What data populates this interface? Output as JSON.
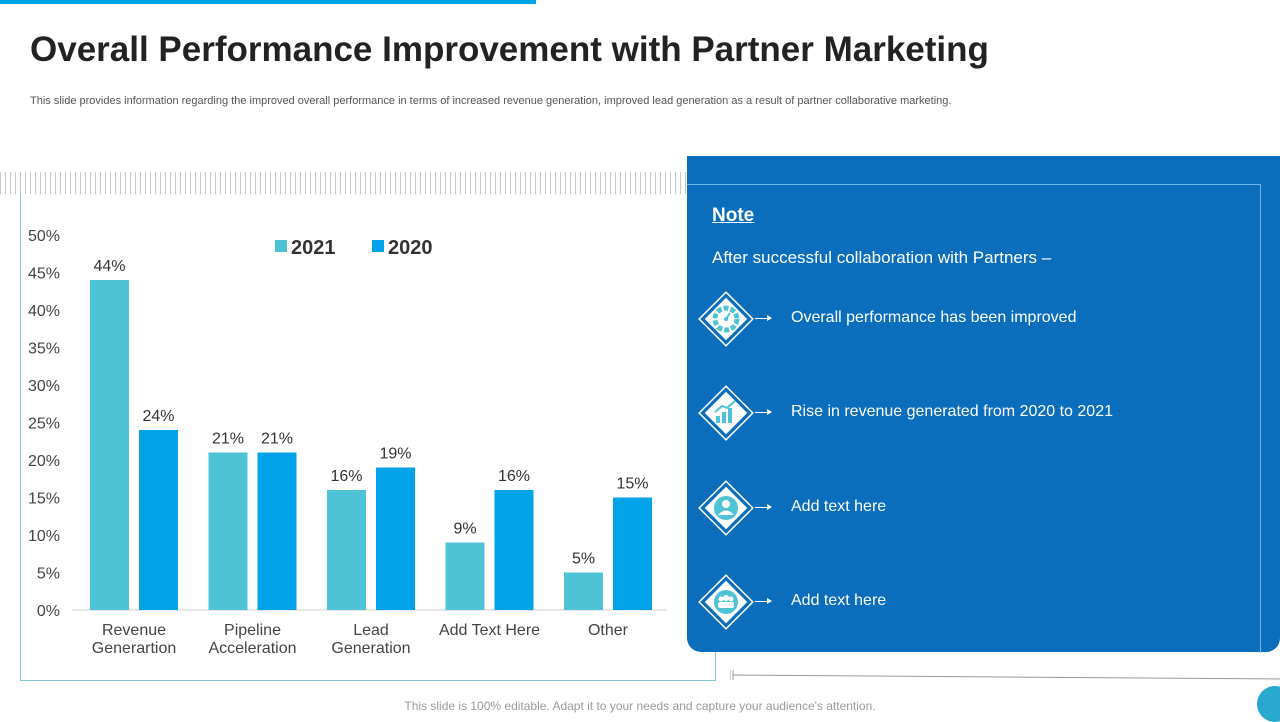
{
  "header": {
    "title": "Overall Performance Improvement with Partner Marketing",
    "subtitle": "This slide provides information regarding the improved overall performance in terms of increased revenue generation, improved lead generation as a result of partner collaborative marketing."
  },
  "chart_data": {
    "type": "bar",
    "categories": [
      "Revenue\nGenerartion",
      "Pipeline\nAcceleration",
      "Lead\nGeneration",
      "Add Text Here",
      "Other"
    ],
    "series": [
      {
        "name": "2021",
        "values": [
          44,
          21,
          16,
          9,
          5
        ],
        "color": "#4fc3d6"
      },
      {
        "name": "2020",
        "values": [
          24,
          21,
          19,
          16,
          15
        ],
        "color": "#00a3e8"
      }
    ],
    "yticks": [
      "0%",
      "5%",
      "10%",
      "15%",
      "20%",
      "25%",
      "30%",
      "35%",
      "40%",
      "45%",
      "50%"
    ],
    "ylim": [
      0,
      50
    ],
    "value_suffix": "%",
    "legend_position": "top-center",
    "title": "",
    "xlabel": "",
    "ylabel": ""
  },
  "note": {
    "heading": "Note",
    "intro": "After successful collaboration with Partners –",
    "items": [
      {
        "icon": "speedometer-icon",
        "text": "Overall performance has been improved"
      },
      {
        "icon": "growth-chart-icon",
        "text": "Rise in revenue generated from 2020 to 2021"
      },
      {
        "icon": "user-icon",
        "text": "Add text here"
      },
      {
        "icon": "team-icon",
        "text": "Add text here"
      }
    ]
  },
  "footer": {
    "text": "This slide is 100% editable. Adapt it to your needs and capture your audience's attention."
  },
  "colors": {
    "accent": "#00a3e8",
    "panel": "#0a6ebd",
    "teal": "#4fc3d6"
  }
}
